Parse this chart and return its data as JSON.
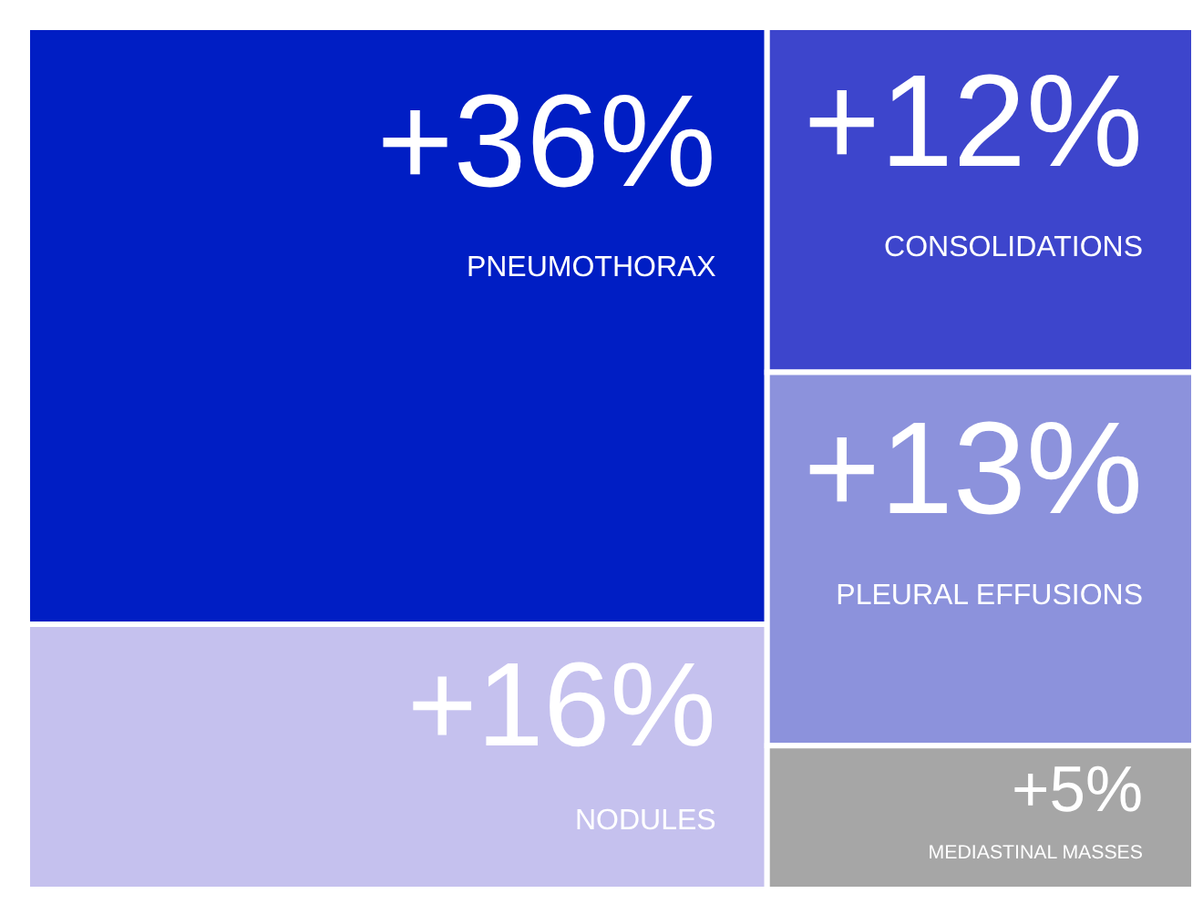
{
  "chart_data": {
    "type": "other",
    "categories": [
      "PNEUMOTHORAX",
      "NODULES",
      "CONSOLIDATIONS",
      "PLEURAL EFFUSIONS",
      "MEDIASTINAL MASSES"
    ],
    "values": [
      36,
      16,
      12,
      13,
      5
    ],
    "value_labels": [
      "+36%",
      "+16%",
      "+12%",
      "+13%",
      "+5%"
    ],
    "colors": [
      "#001ec4",
      "#c5c1ee",
      "#3d45cc",
      "#8c92dc",
      "#a6a6a6"
    ]
  }
}
